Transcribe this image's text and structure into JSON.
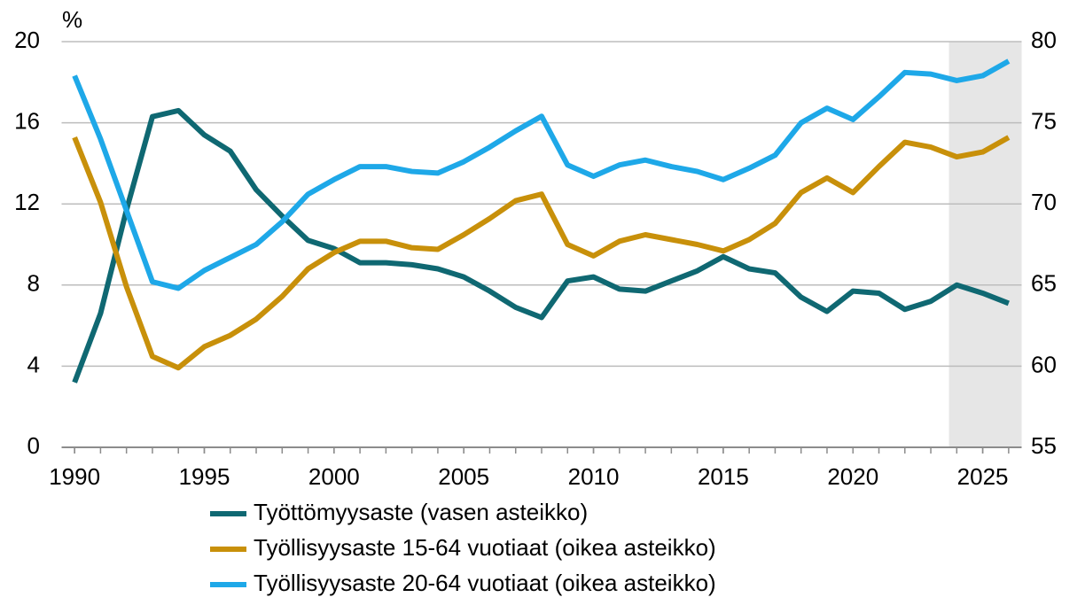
{
  "chart_data": {
    "type": "line",
    "unit_label": "%",
    "x": [
      1990,
      1991,
      1992,
      1993,
      1994,
      1995,
      1996,
      1997,
      1998,
      1999,
      2000,
      2001,
      2002,
      2003,
      2004,
      2005,
      2006,
      2007,
      2008,
      2009,
      2010,
      2011,
      2012,
      2013,
      2014,
      2015,
      2016,
      2017,
      2018,
      2019,
      2020,
      2021,
      2022,
      2023,
      2024,
      2025,
      2026
    ],
    "series": [
      {
        "name": "Työttömyysaste (vasen asteikko)",
        "color": "#0f6872",
        "axis": "y",
        "values": [
          3.2,
          6.6,
          11.7,
          16.3,
          16.6,
          15.4,
          14.6,
          12.7,
          11.4,
          10.2,
          9.8,
          9.1,
          9.1,
          9.0,
          8.8,
          8.4,
          7.7,
          6.9,
          6.4,
          8.2,
          8.4,
          7.8,
          7.7,
          8.2,
          8.7,
          9.4,
          8.8,
          8.6,
          7.4,
          6.7,
          7.7,
          7.6,
          6.8,
          7.2,
          8.0,
          7.6,
          7.1
        ]
      },
      {
        "name": "Työllisyysaste 15-64 vuotiaat (oikea asteikko)",
        "color": "#c8900a",
        "axis": "y2",
        "values": [
          74.1,
          70.1,
          64.9,
          60.6,
          59.9,
          61.2,
          61.9,
          62.9,
          64.3,
          66.0,
          67.0,
          67.7,
          67.7,
          67.3,
          67.2,
          68.1,
          69.1,
          70.2,
          70.6,
          67.5,
          66.8,
          67.7,
          68.1,
          67.8,
          67.5,
          67.1,
          67.8,
          68.8,
          70.7,
          71.6,
          70.7,
          72.3,
          73.8,
          73.5,
          72.9,
          73.2,
          74.1
        ]
      },
      {
        "name": "Työllisyysaste 20-64 vuotiaat (oikea asteikko)",
        "color": "#1ea8e8",
        "axis": "y2",
        "values": [
          77.9,
          74.0,
          69.6,
          65.2,
          64.8,
          65.9,
          66.7,
          67.5,
          68.9,
          70.6,
          71.5,
          72.3,
          72.3,
          72.0,
          71.9,
          72.6,
          73.5,
          74.5,
          75.4,
          72.4,
          71.7,
          72.4,
          72.7,
          72.3,
          72.0,
          71.5,
          72.2,
          73.0,
          75.0,
          75.9,
          75.2,
          76.6,
          78.1,
          78.0,
          77.6,
          77.9,
          78.8
        ]
      }
    ],
    "xlim": [
      1989.5,
      2026.5
    ],
    "xticks": [
      1990,
      1995,
      2000,
      2005,
      2010,
      2015,
      2020,
      2025
    ],
    "ylim": [
      0,
      20
    ],
    "yticks": [
      0,
      4,
      8,
      12,
      16,
      20
    ],
    "y2lim": [
      55,
      80
    ],
    "y2ticks": [
      55,
      60,
      65,
      70,
      75,
      80
    ],
    "grid": true,
    "shade_from": 2023.7,
    "shade_color": "#e6e6e6"
  }
}
